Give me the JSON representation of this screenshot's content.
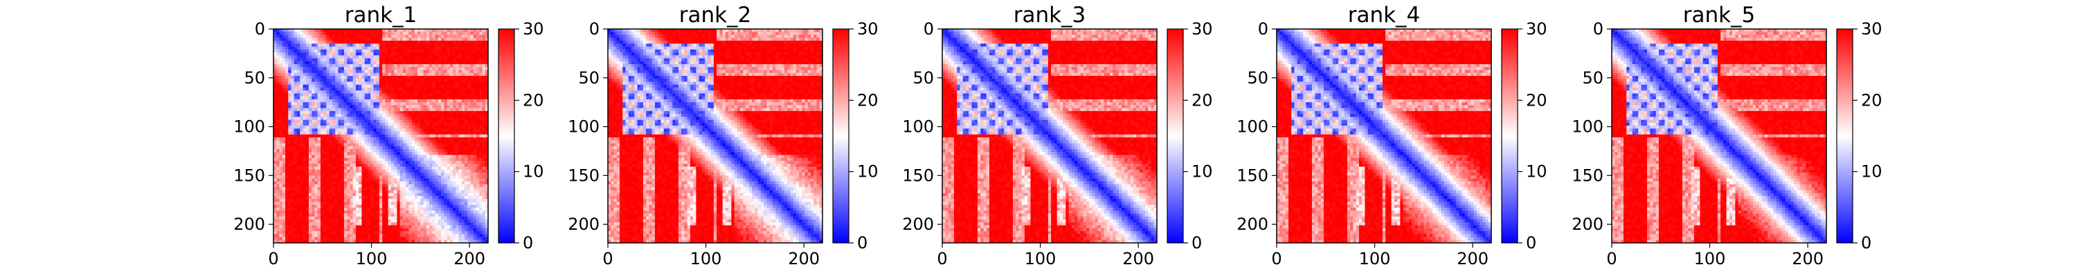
{
  "chart_data": [
    {
      "type": "heatmap",
      "title": "rank_1",
      "x_ticks": [
        0,
        100,
        200
      ],
      "y_ticks": [
        0,
        50,
        100,
        150,
        200
      ],
      "colorbar": {
        "ticks": [
          0,
          10,
          20,
          30
        ],
        "range": [
          0,
          30
        ],
        "colormap": [
          "#0000ff",
          "#ffffff",
          "#ff0000"
        ]
      },
      "matrix_size": 219,
      "x_range": [
        0,
        219
      ],
      "y_range": [
        0,
        219
      ],
      "y_inverted": true
    },
    {
      "type": "heatmap",
      "title": "rank_2",
      "x_ticks": [
        0,
        100,
        200
      ],
      "y_ticks": [
        0,
        50,
        100,
        150,
        200
      ],
      "colorbar": {
        "ticks": [
          0,
          10,
          20,
          30
        ],
        "range": [
          0,
          30
        ],
        "colormap": [
          "#0000ff",
          "#ffffff",
          "#ff0000"
        ]
      },
      "matrix_size": 219,
      "x_range": [
        0,
        219
      ],
      "y_range": [
        0,
        219
      ],
      "y_inverted": true
    },
    {
      "type": "heatmap",
      "title": "rank_3",
      "x_ticks": [
        0,
        100,
        200
      ],
      "y_ticks": [
        0,
        50,
        100,
        150,
        200
      ],
      "colorbar": {
        "ticks": [
          0,
          10,
          20,
          30
        ],
        "range": [
          0,
          30
        ],
        "colormap": [
          "#0000ff",
          "#ffffff",
          "#ff0000"
        ]
      },
      "matrix_size": 219,
      "x_range": [
        0,
        219
      ],
      "y_range": [
        0,
        219
      ],
      "y_inverted": true
    },
    {
      "type": "heatmap",
      "title": "rank_4",
      "x_ticks": [
        0,
        100,
        200
      ],
      "y_ticks": [
        0,
        50,
        100,
        150,
        200
      ],
      "colorbar": {
        "ticks": [
          0,
          10,
          20,
          30
        ],
        "range": [
          0,
          30
        ],
        "colormap": [
          "#0000ff",
          "#ffffff",
          "#ff0000"
        ]
      },
      "matrix_size": 219,
      "x_range": [
        0,
        219
      ],
      "y_range": [
        0,
        219
      ],
      "y_inverted": true
    },
    {
      "type": "heatmap",
      "title": "rank_5",
      "x_ticks": [
        0,
        100,
        200
      ],
      "y_ticks": [
        0,
        50,
        100,
        150,
        200
      ],
      "colorbar": {
        "ticks": [
          0,
          10,
          20,
          30
        ],
        "range": [
          0,
          30
        ],
        "colormap": [
          "#0000ff",
          "#ffffff",
          "#ff0000"
        ]
      },
      "matrix_size": 219,
      "x_range": [
        0,
        219
      ],
      "y_range": [
        0,
        219
      ],
      "y_inverted": true
    }
  ]
}
